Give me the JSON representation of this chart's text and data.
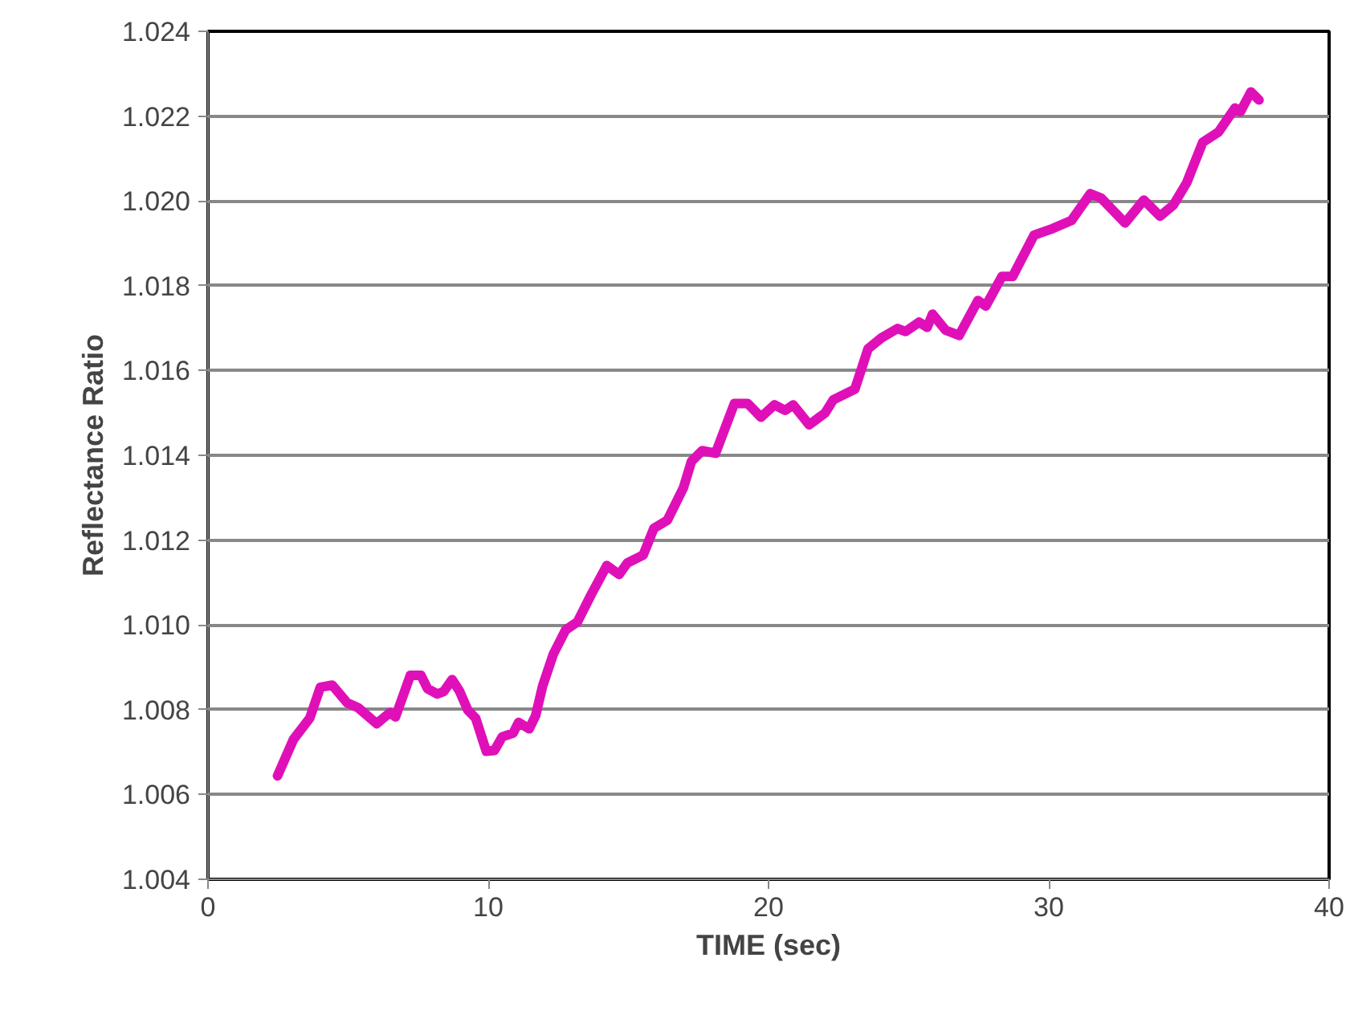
{
  "chart_data": {
    "type": "line",
    "xlabel": "TIME (sec)",
    "ylabel": "Reflectance Ratio",
    "xlim": [
      0,
      40
    ],
    "xticks": [
      0,
      10,
      20,
      30,
      40
    ],
    "ylim": [
      1.004,
      1.024
    ],
    "yticks": [
      {
        "value": 1.004,
        "label": "1.004"
      },
      {
        "value": 1.006,
        "label": "1.006"
      },
      {
        "value": 1.008,
        "label": "1.008"
      },
      {
        "value": 1.01,
        "label": "1.010"
      },
      {
        "value": 1.012,
        "label": "1.012"
      },
      {
        "value": 1.014,
        "label": "1.014"
      },
      {
        "value": 1.016,
        "label": "1.016"
      },
      {
        "value": 1.018,
        "label": "1.018"
      },
      {
        "value": 1.02,
        "label": "1.020"
      },
      {
        "value": 1.022,
        "label": "1.022"
      },
      {
        "value": 1.024,
        "label": "1.024"
      }
    ],
    "grid": "y",
    "marker": "none",
    "line_style": "solid",
    "series": [
      {
        "color": "#e010b8",
        "x": [
          2.48,
          3.05,
          3.63,
          4.01,
          4.43,
          4.97,
          5.35,
          6.02,
          6.49,
          6.69,
          7.22,
          7.6,
          7.83,
          8.18,
          8.41,
          8.71,
          8.98,
          9.27,
          9.55,
          9.93,
          10.22,
          10.5,
          10.89,
          11.08,
          11.46,
          11.69,
          11.94,
          12.32,
          12.76,
          13.18,
          13.66,
          14.23,
          14.67,
          14.96,
          15.53,
          15.91,
          16.39,
          16.96,
          17.25,
          17.63,
          18.11,
          18.78,
          19.26,
          19.73,
          20.21,
          20.59,
          20.88,
          21.45,
          22.02,
          22.31,
          23.08,
          23.55,
          24.03,
          24.6,
          24.89,
          25.37,
          25.66,
          25.85,
          26.32,
          26.8,
          27.47,
          27.75,
          28.33,
          28.71,
          29.47,
          30.14,
          30.81,
          31.48,
          31.86,
          32.72,
          33.39,
          33.97,
          34.44,
          34.92,
          35.49,
          36.06,
          36.64,
          36.83,
          37.21,
          37.5
        ],
        "values": [
          1.00644,
          1.0073,
          1.0078,
          1.00853,
          1.00858,
          1.00816,
          1.00805,
          1.00767,
          1.00793,
          1.00783,
          1.00881,
          1.00881,
          1.0085,
          1.00837,
          1.00843,
          1.00871,
          1.00843,
          1.00799,
          1.0078,
          1.00702,
          1.00704,
          1.00736,
          1.00745,
          1.0077,
          1.00755,
          1.00786,
          1.00856,
          1.00931,
          1.00988,
          1.01007,
          1.0107,
          1.0114,
          1.01119,
          1.01146,
          1.01165,
          1.01228,
          1.01247,
          1.01323,
          1.01386,
          1.01411,
          1.01405,
          1.01522,
          1.01522,
          1.0149,
          1.01519,
          1.01506,
          1.01519,
          1.01472,
          1.015,
          1.01531,
          1.01556,
          1.01651,
          1.01677,
          1.01699,
          1.01692,
          1.01714,
          1.01702,
          1.01733,
          1.01695,
          1.01683,
          1.01765,
          1.01752,
          1.01822,
          1.01822,
          1.01919,
          1.01935,
          1.01954,
          1.02017,
          1.02007,
          1.01948,
          1.02002,
          1.01964,
          1.0199,
          1.02043,
          1.02138,
          1.02163,
          1.02219,
          1.0221,
          1.02257,
          1.02238
        ]
      }
    ]
  }
}
